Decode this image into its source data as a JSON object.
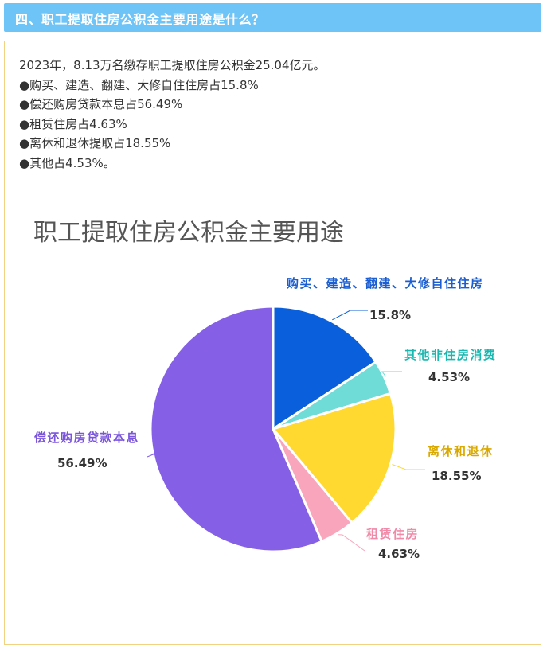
{
  "header": {
    "title": "四、职工提取住房公积金主要用途是什么？"
  },
  "intro": {
    "lines": [
      "2023年，8.13万名缴存职工提取住房公积金25.04亿元。",
      "●购买、建造、翻建、大修自住住房占15.8%",
      "●偿还购房贷款本息占56.49%",
      "●租赁住房占4.63%",
      "●离休和退休提取占18.55%",
      "●其他占4.53%。"
    ]
  },
  "chart_data": {
    "type": "pie",
    "title": "职工提取住房公积金主要用途",
    "slices": [
      {
        "label": "购买、建造、翻建、大修自住住房",
        "value": 15.8,
        "value_label": "15.8%",
        "color": "#0a5fdc",
        "label_color": "#1b5ed1"
      },
      {
        "label": "其他非住房消费",
        "value": 4.53,
        "value_label": "4.53%",
        "color": "#6fdcd7",
        "label_color": "#1ab7b0"
      },
      {
        "label": "离休和退休",
        "value": 18.55,
        "value_label": "18.55%",
        "color": "#ffd930",
        "label_color": "#d9a900"
      },
      {
        "label": "租赁住房",
        "value": 4.63,
        "value_label": "4.63%",
        "color": "#f9a6bd",
        "label_color": "#f08aa8"
      },
      {
        "label": "偿还购房贷款本息",
        "value": 56.49,
        "value_label": "56.49%",
        "color": "#8560e6",
        "label_color": "#7b56dd"
      }
    ]
  }
}
